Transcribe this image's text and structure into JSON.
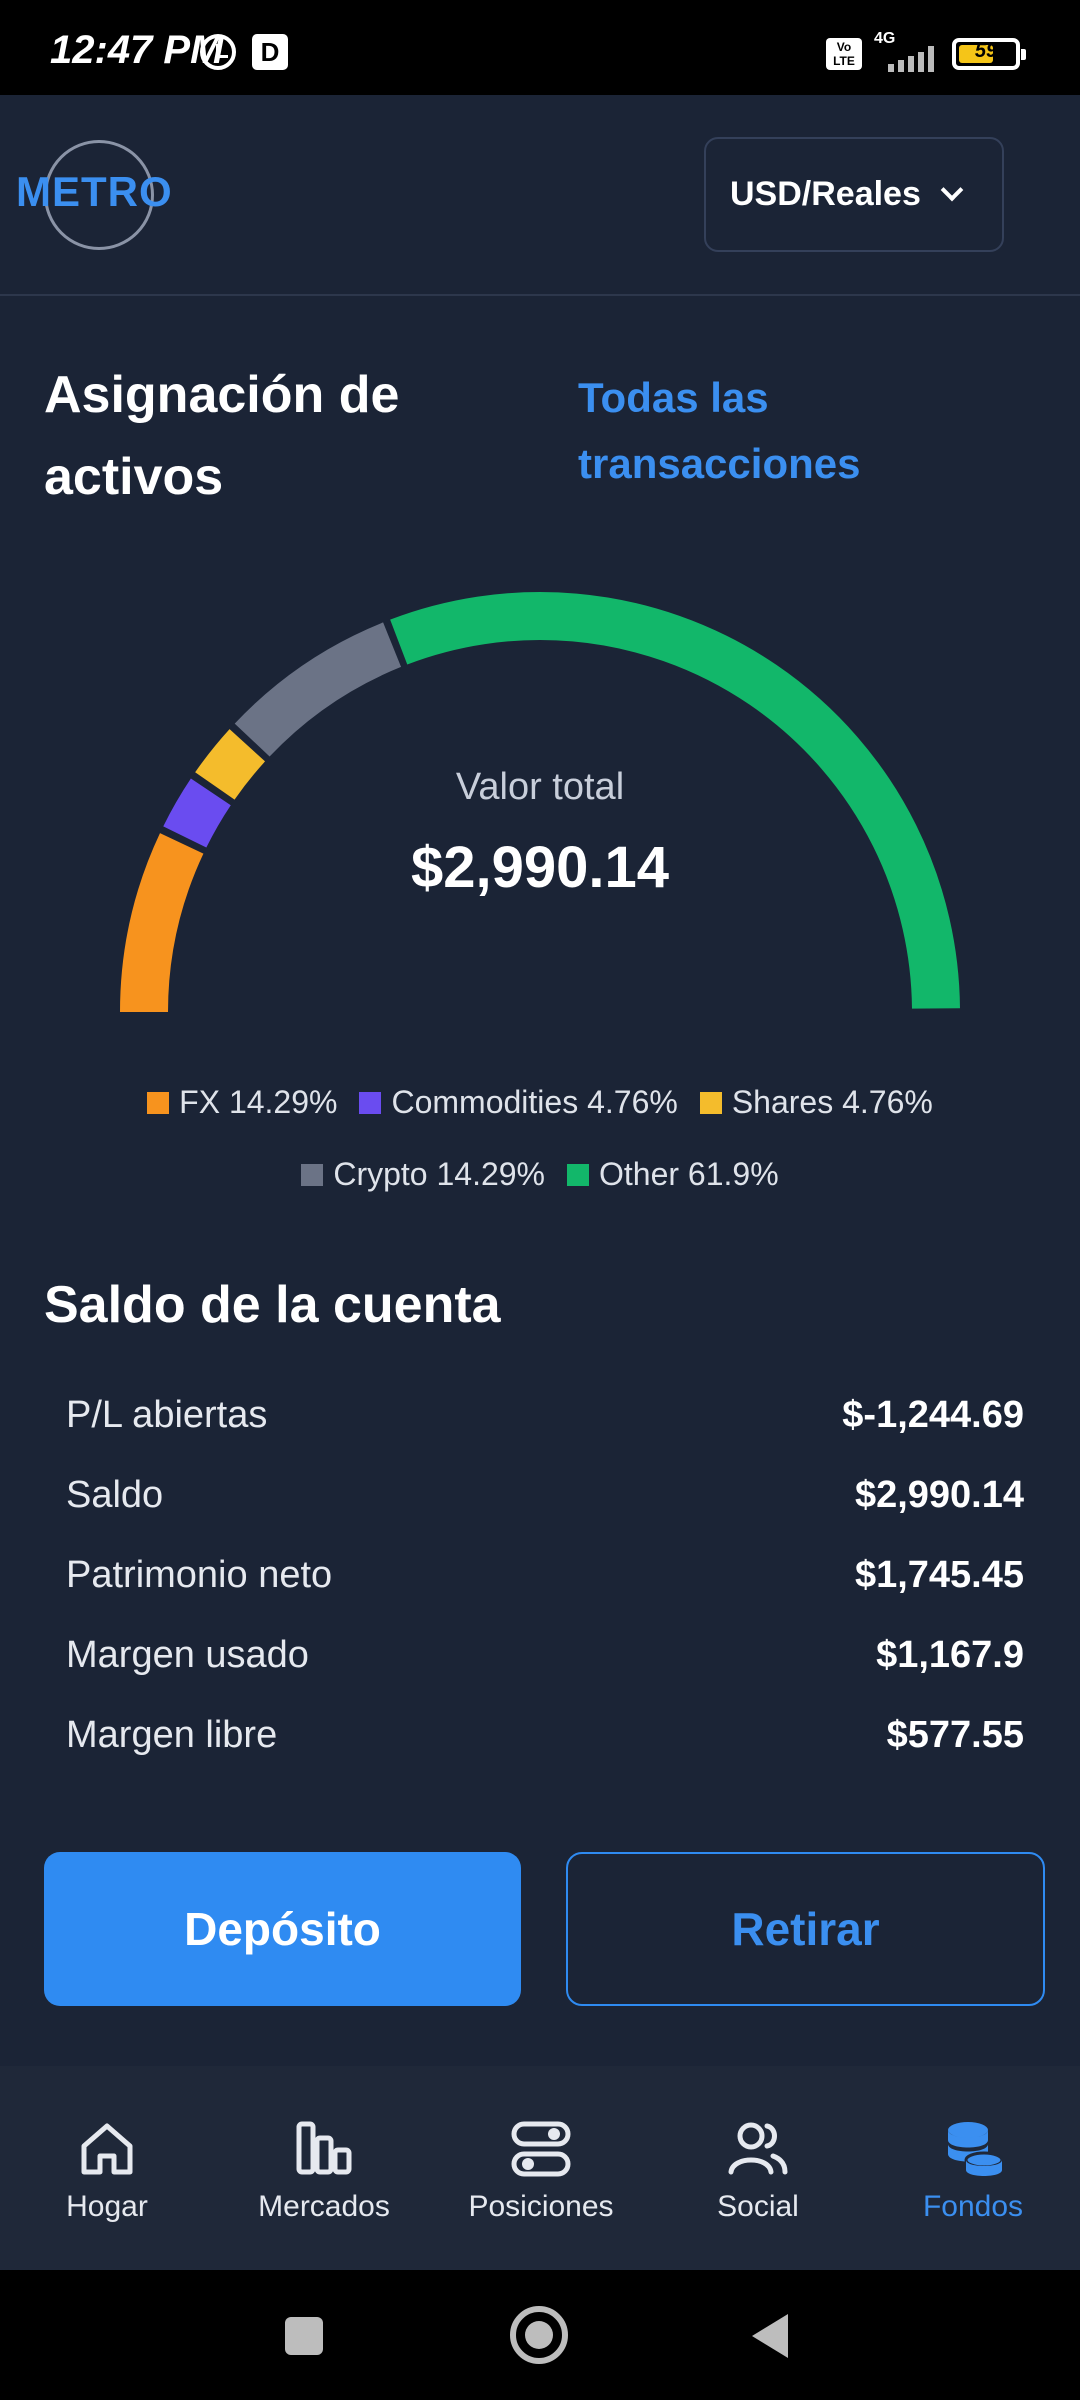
{
  "status_bar": {
    "time": "12:47 PM",
    "d_badge": "D",
    "volte": "Vo LTE",
    "network": "4G",
    "battery": "59"
  },
  "header": {
    "logo": "METRO",
    "currency_selector": "USD/Reales"
  },
  "allocation": {
    "title": "Asignación de activos",
    "all_transactions_link": "Todas las transacciones",
    "total_label": "Valor total",
    "total_value": "$2,990.14",
    "legend": [
      {
        "label": "FX 14.29%",
        "color": "#f7931e"
      },
      {
        "label": "Commodities 4.76%",
        "color": "#6a4cf0"
      },
      {
        "label": "Shares 4.76%",
        "color": "#f4bc2c"
      },
      {
        "label": "Crypto 14.29%",
        "color": "#6b7386"
      },
      {
        "label": "Other 61.9%",
        "color": "#12b76a"
      }
    ]
  },
  "chart_data": {
    "type": "pie",
    "style": "semi-donut",
    "slices": [
      {
        "name": "FX",
        "value": 14.29,
        "color": "#f7931e"
      },
      {
        "name": "Commodities",
        "value": 4.76,
        "color": "#6a4cf0"
      },
      {
        "name": "Shares",
        "value": 4.76,
        "color": "#f4bc2c"
      },
      {
        "name": "Crypto",
        "value": 14.29,
        "color": "#6b7386"
      },
      {
        "name": "Other",
        "value": 61.9,
        "color": "#12b76a"
      }
    ]
  },
  "balance": {
    "title": "Saldo de la cuenta",
    "rows": [
      {
        "label": "P/L abiertas",
        "value": "$-1,244.69"
      },
      {
        "label": "Saldo",
        "value": "$2,990.14"
      },
      {
        "label": "Patrimonio neto",
        "value": "$1,745.45"
      },
      {
        "label": "Margen usado",
        "value": "$1,167.9"
      },
      {
        "label": "Margen libre",
        "value": "$577.55"
      }
    ]
  },
  "actions": {
    "deposit": "Depósito",
    "withdraw": "Retirar"
  },
  "nav": {
    "items": [
      {
        "label": "Hogar",
        "icon": "home-icon"
      },
      {
        "label": "Mercados",
        "icon": "bar-chart-icon"
      },
      {
        "label": "Posiciones",
        "icon": "toggles-icon"
      },
      {
        "label": "Social",
        "icon": "users-icon"
      },
      {
        "label": "Fondos",
        "icon": "coins-stack-icon"
      }
    ],
    "active_color": "#3b8ff0"
  }
}
